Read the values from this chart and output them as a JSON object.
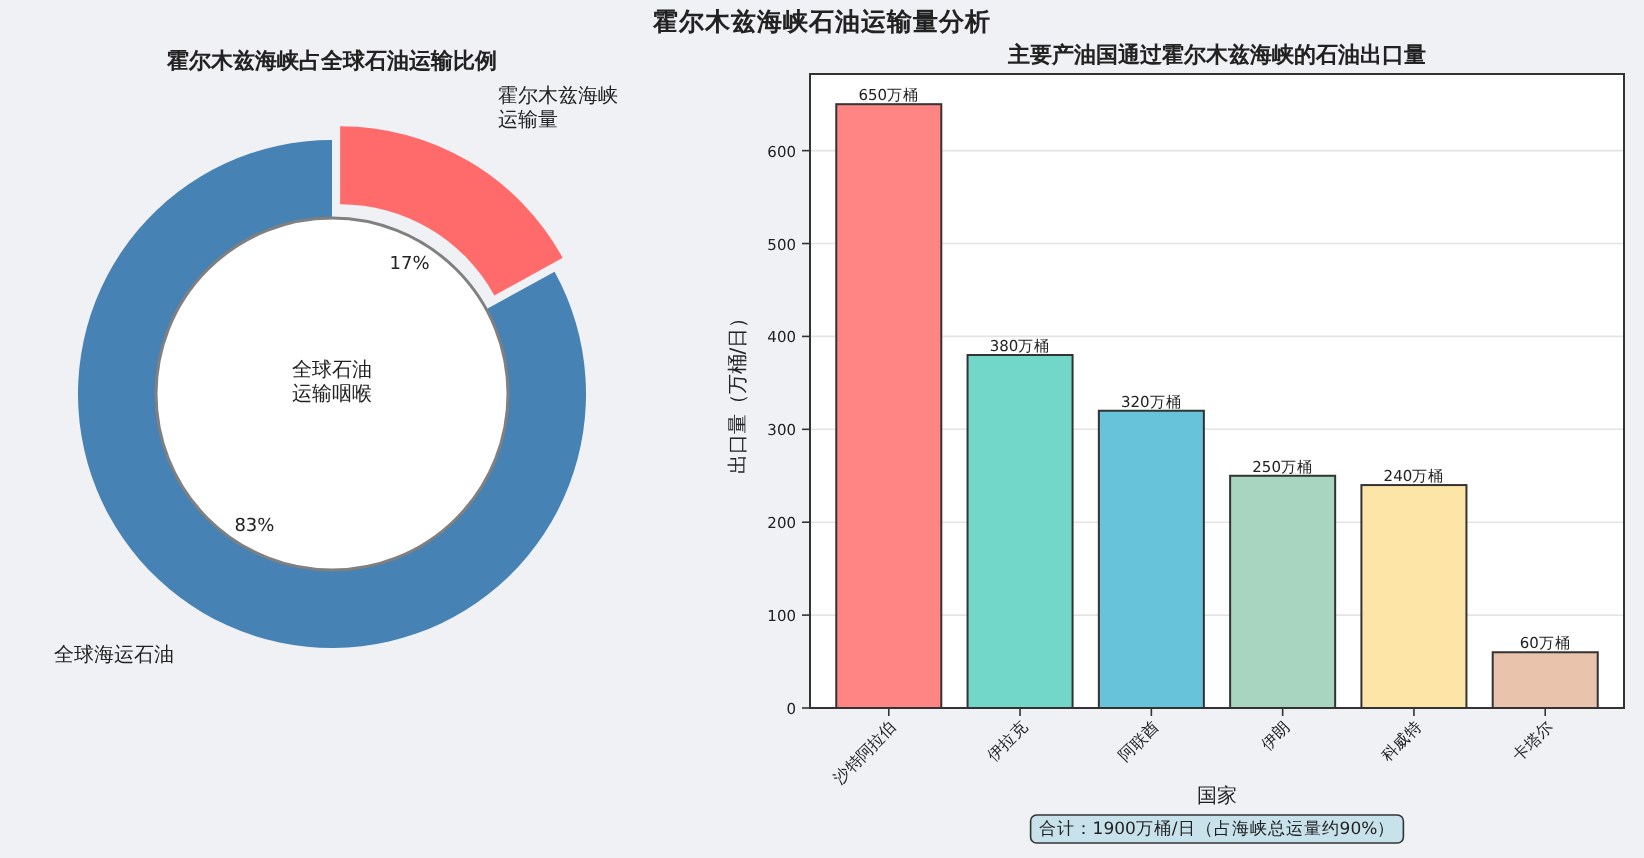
{
  "chart_data": [
    {
      "type": "other",
      "title": "霍尔木兹海峡石油运输量分析"
    },
    {
      "type": "donut",
      "title": "霍尔木兹海峡占全球石油运输比例",
      "categories": [
        "霍尔木兹海峡运输量",
        "全球海运石油"
      ],
      "values": [
        17,
        83
      ],
      "colors": [
        "#ff6b6b",
        "#4682b4"
      ],
      "value_labels": [
        "17%",
        "83%"
      ],
      "annotations": [
        "全球石油运输咽喉"
      ]
    },
    {
      "type": "bar",
      "title": "主要产油国通过霍尔木兹海峡的石油出口量",
      "xlabel": "国家",
      "ylabel": "出口量（万桶/日）",
      "categories": [
        "沙特阿拉伯",
        "伊拉克",
        "阿联酋",
        "伊朗",
        "科威特",
        "卡塔尔"
      ],
      "values": [
        650,
        380,
        320,
        250,
        240,
        60
      ],
      "colors": [
        "#ff8585",
        "#72d6c9",
        "#67c3da",
        "#a8d5c0",
        "#fde5a8",
        "#e9c3ab"
      ],
      "value_labels": [
        "650万桶",
        "380万桶",
        "320万桶",
        "250万桶",
        "240万桶",
        "60万桶"
      ],
      "ylim": [
        0,
        682.5
      ],
      "yticks": [
        0,
        100,
        200,
        300,
        400,
        500,
        600
      ],
      "grid": "y",
      "annotations": [
        "合计：1900万桶/日（占海峡总运量约90%）"
      ]
    }
  ]
}
